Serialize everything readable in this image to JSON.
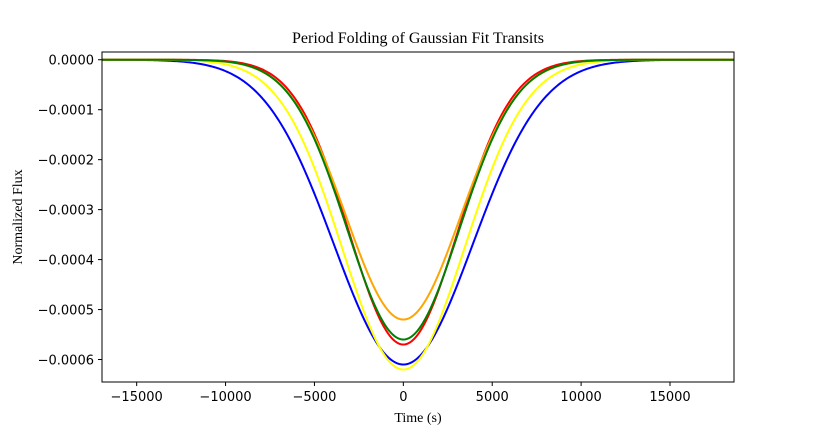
{
  "chart_data": {
    "type": "line",
    "title": "Period Folding of Gaussian Fit Transits",
    "xlabel": "Time (s)",
    "ylabel": "Normalized Flux",
    "xlim": [
      -16950,
      18600
    ],
    "ylim": [
      -0.000645,
      1.55e-05
    ],
    "xticks": [
      -15000,
      -10000,
      -5000,
      0,
      5000,
      10000,
      15000
    ],
    "xtick_labels": [
      "−15000",
      "−10000",
      "−5000",
      "0",
      "5000",
      "10000",
      "15000"
    ],
    "yticks": [
      0,
      -0.0001,
      -0.0002,
      -0.0003,
      -0.0004,
      -0.0005,
      -0.0006
    ],
    "ytick_labels": [
      "0.0000",
      "−0.0001",
      "−0.0002",
      "−0.0003",
      "−0.0004",
      "−0.0005",
      "−0.0006"
    ],
    "grid": false,
    "legend": "none",
    "series": [
      {
        "color": "#0000ff",
        "amplitude": -0.00061,
        "center": 0,
        "sigma": 3900
      },
      {
        "color": "#ffff00",
        "amplitude": -0.00062,
        "center": 0,
        "sigma": 3450
      },
      {
        "color": "#ff0000",
        "amplitude": -0.00057,
        "center": 0,
        "sigma": 3050
      },
      {
        "color": "#ffa500",
        "amplitude": -0.00052,
        "center": 0,
        "sigma": 3200
      },
      {
        "color": "#008000",
        "amplitude": -0.00056,
        "center": 0,
        "sigma": 3150
      }
    ]
  }
}
